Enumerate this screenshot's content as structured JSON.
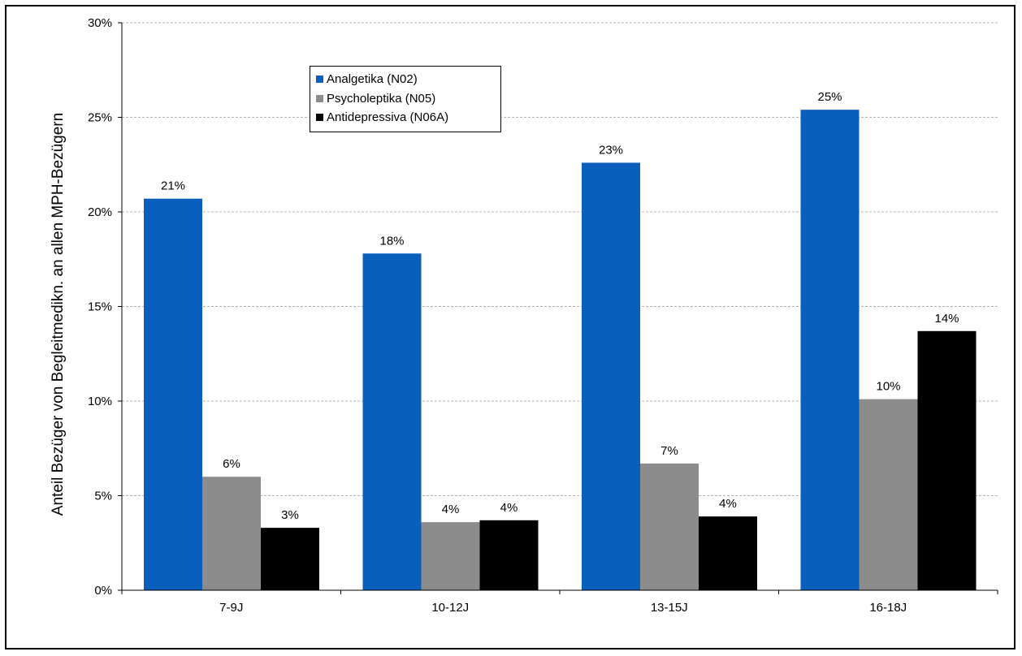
{
  "chart_data": {
    "type": "bar",
    "title": "",
    "xlabel": "",
    "ylabel": "Anteil Bezüger von Begleitmedikn. an allen MPH-Bezügern",
    "ylim": [
      0,
      30
    ],
    "y_ticks": [
      "0%",
      "5%",
      "10%",
      "15%",
      "20%",
      "25%",
      "30%"
    ],
    "y_tick_values": [
      0,
      5,
      10,
      15,
      20,
      25,
      30
    ],
    "grid": "horizontal dashed",
    "legend_position": "top-left",
    "categories": [
      "7-9J",
      "10-12J",
      "13-15J",
      "16-18J"
    ],
    "series": [
      {
        "name": "Analgetika (N02)",
        "color": "#0a5fbd",
        "values": [
          20.7,
          17.8,
          22.6,
          25.4
        ],
        "labels": [
          "21%",
          "18%",
          "23%",
          "25%"
        ]
      },
      {
        "name": "Psycholeptika (N05)",
        "color": "#8c8c8c",
        "values": [
          6.0,
          3.6,
          6.7,
          10.1
        ],
        "labels": [
          "6%",
          "4%",
          "7%",
          "10%"
        ]
      },
      {
        "name": "Antidepressiva (N06A)",
        "color": "#000000",
        "values": [
          3.3,
          3.7,
          3.9,
          13.7
        ],
        "labels": [
          "3%",
          "4%",
          "4%",
          "14%"
        ]
      }
    ]
  }
}
